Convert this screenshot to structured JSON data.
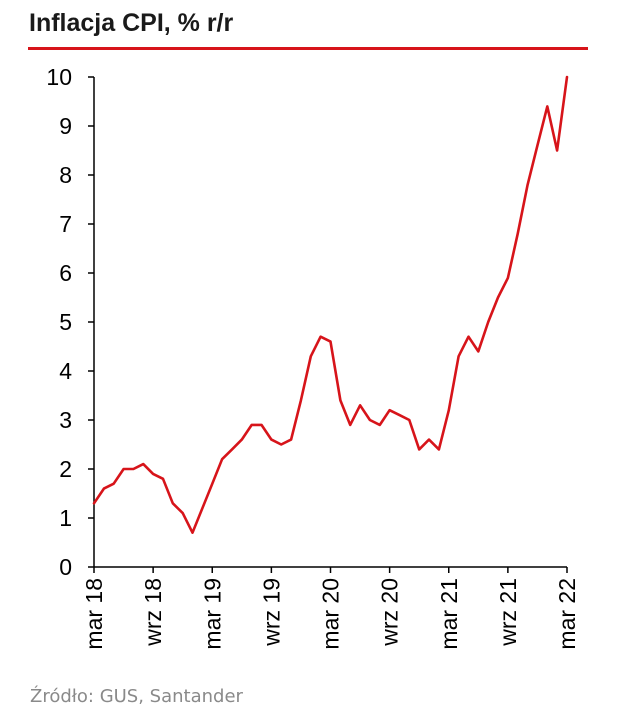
{
  "title": "Inflacja CPI, % r/r",
  "source": "Źródło: GUS, Santander",
  "colors": {
    "line": "#d7141a",
    "rule": "#d7141a",
    "axis": "#000000"
  },
  "chart_data": {
    "type": "line",
    "x": [
      "mar 18",
      "kwi 18",
      "maj 18",
      "cze 18",
      "lip 18",
      "sie 18",
      "wrz 18",
      "paź 18",
      "lis 18",
      "gru 18",
      "sty 19",
      "lut 19",
      "mar 19",
      "kwi 19",
      "maj 19",
      "cze 19",
      "lip 19",
      "sie 19",
      "wrz 19",
      "paź 19",
      "lis 19",
      "gru 19",
      "sty 20",
      "lut 20",
      "mar 20",
      "kwi 20",
      "maj 20",
      "cze 20",
      "lip 20",
      "sie 20",
      "wrz 20",
      "paź 20",
      "lis 20",
      "gru 20",
      "sty 21",
      "lut 21",
      "mar 21",
      "kwi 21",
      "maj 21",
      "cze 21",
      "lip 21",
      "sie 21",
      "wrz 21",
      "paź 21",
      "lis 21",
      "gru 21",
      "sty 22",
      "lut 22",
      "mar 22"
    ],
    "series": [
      {
        "values": [
          1.3,
          1.6,
          1.7,
          2.0,
          2.0,
          2.1,
          1.9,
          1.8,
          1.3,
          1.1,
          0.7,
          1.2,
          1.7,
          2.2,
          2.4,
          2.6,
          2.9,
          2.9,
          2.6,
          2.5,
          2.6,
          3.4,
          4.3,
          4.7,
          4.6,
          3.4,
          2.9,
          3.3,
          3.0,
          2.9,
          3.2,
          3.1,
          3.0,
          2.4,
          2.6,
          2.4,
          3.2,
          4.3,
          4.7,
          4.4,
          5.0,
          5.5,
          5.9,
          6.8,
          7.8,
          8.6,
          9.4,
          8.5,
          10.0
        ]
      }
    ],
    "xticks": [
      "mar 18",
      "wrz 18",
      "mar 19",
      "wrz 19",
      "mar 20",
      "wrz 20",
      "mar 21",
      "wrz 21",
      "mar 22"
    ],
    "yticks": [
      "0",
      "1",
      "2",
      "3",
      "4",
      "5",
      "6",
      "7",
      "8",
      "9",
      "10"
    ],
    "ylim": [
      0,
      10
    ],
    "grid": false,
    "legend": "none"
  }
}
